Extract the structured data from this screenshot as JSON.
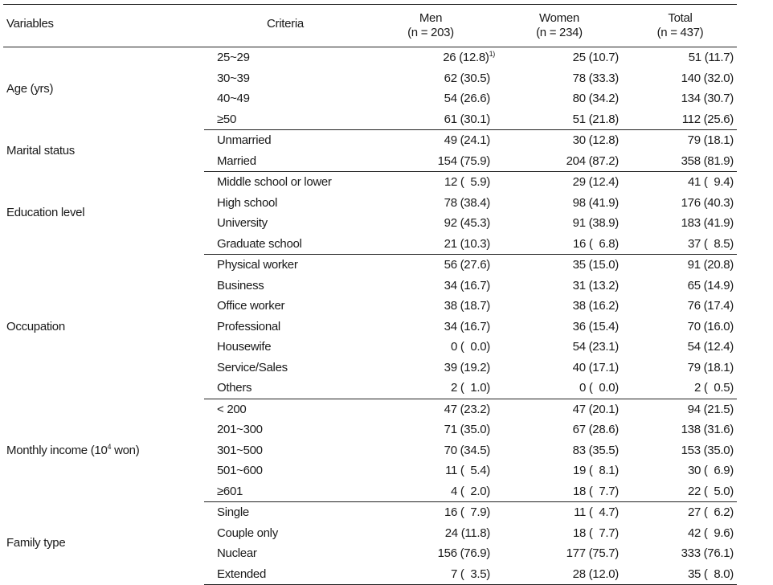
{
  "headers": {
    "variables": "Variables",
    "criteria": "Criteria",
    "men": "Men",
    "men_n": "(n = 203)",
    "women": "Women",
    "women_n": "(n = 234)",
    "total": "Total",
    "total_n": "(n = 437)"
  },
  "groups": [
    {
      "variable": "Age (yrs)",
      "rows": [
        {
          "criteria": "25~29",
          "men": "26 (12.8)",
          "men_note": "1)",
          "women": "25 (10.7)",
          "total": "51 (11.7)"
        },
        {
          "criteria": "30~39",
          "men": "62 (30.5)",
          "women": "78 (33.3)",
          "total": "140 (32.0)"
        },
        {
          "criteria": "40~49",
          "men": "54 (26.6)",
          "women": "80 (34.2)",
          "total": "134 (30.7)"
        },
        {
          "criteria": "≥50",
          "men": "61 (30.1)",
          "women": "51 (21.8)",
          "total": "112 (25.6)"
        }
      ]
    },
    {
      "variable": "Marital status",
      "rows": [
        {
          "criteria": "Unmarried",
          "men": "49 (24.1)",
          "women": "30 (12.8)",
          "total": "79 (18.1)"
        },
        {
          "criteria": "Married",
          "men": "154 (75.9)",
          "women": "204 (87.2)",
          "total": "358 (81.9)"
        }
      ]
    },
    {
      "variable": "Education level",
      "rows": [
        {
          "criteria": "Middle school or lower",
          "men": "12 (  5.9)",
          "women": "29 (12.4)",
          "total": "41 (  9.4)"
        },
        {
          "criteria": "High school",
          "men": "78 (38.4)",
          "women": "98 (41.9)",
          "total": "176 (40.3)"
        },
        {
          "criteria": "University",
          "men": "92 (45.3)",
          "women": "91 (38.9)",
          "total": "183 (41.9)"
        },
        {
          "criteria": "Graduate school",
          "men": "21 (10.3)",
          "women": "16 (  6.8)",
          "total": "37 (  8.5)"
        }
      ]
    },
    {
      "variable": "Occupation",
      "rows": [
        {
          "criteria": "Physical worker",
          "men": "56 (27.6)",
          "women": "35 (15.0)",
          "total": "91 (20.8)"
        },
        {
          "criteria": "Business",
          "men": "34 (16.7)",
          "women": "31 (13.2)",
          "total": "65 (14.9)"
        },
        {
          "criteria": "Office worker",
          "men": "38 (18.7)",
          "women": "38 (16.2)",
          "total": "76 (17.4)"
        },
        {
          "criteria": "Professional",
          "men": "34 (16.7)",
          "women": "36 (15.4)",
          "total": "70 (16.0)"
        },
        {
          "criteria": "Housewife",
          "men": "0 (  0.0)",
          "women": "54 (23.1)",
          "total": "54 (12.4)"
        },
        {
          "criteria": "Service/Sales",
          "men": "39 (19.2)",
          "women": "40 (17.1)",
          "total": "79 (18.1)"
        },
        {
          "criteria": "Others",
          "men": "2 (  1.0)",
          "women": "0 (  0.0)",
          "total": "2 (  0.5)"
        }
      ]
    },
    {
      "variable": "Monthly income (10",
      "variable_sup": "4",
      "variable_suffix": " won)",
      "rows": [
        {
          "criteria": "< 200",
          "men": "47 (23.2)",
          "women": "47 (20.1)",
          "total": "94 (21.5)"
        },
        {
          "criteria": "201~300",
          "men": "71 (35.0)",
          "women": "67 (28.6)",
          "total": "138 (31.6)"
        },
        {
          "criteria": "301~500",
          "men": "70 (34.5)",
          "women": "83 (35.5)",
          "total": "153 (35.0)"
        },
        {
          "criteria": "501~600",
          "men": "11 (  5.4)",
          "women": "19 (  8.1)",
          "total": "30 (  6.9)"
        },
        {
          "criteria": "≥601",
          "men": "4 (  2.0)",
          "women": "18 (  7.7)",
          "total": "22 (  5.0)"
        }
      ]
    },
    {
      "variable": "Family type",
      "rows": [
        {
          "criteria": "Single",
          "men": "16 (  7.9)",
          "women": "11 (  4.7)",
          "total": "27 (  6.2)"
        },
        {
          "criteria": "Couple only",
          "men": "24 (11.8)",
          "women": "18 (  7.7)",
          "total": "42 (  9.6)"
        },
        {
          "criteria": "Nuclear",
          "men": "156 (76.9)",
          "women": "177 (75.7)",
          "total": "333 (76.1)"
        },
        {
          "criteria": "Extended",
          "men": "7 (  3.5)",
          "women": "28 (12.0)",
          "total": "35 (  8.0)"
        }
      ]
    }
  ]
}
